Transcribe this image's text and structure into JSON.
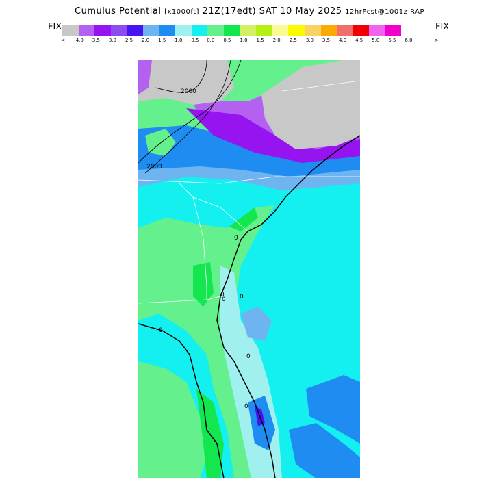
{
  "title": {
    "main": "Cumulus Potential",
    "units": "[x1000ft]",
    "time": "21Z(17edt) SAT 10 May 2025",
    "forecast": "12hrFcst@1001z RAP"
  },
  "legend": {
    "left_label": "FIX",
    "right_label": "FIX",
    "left_arrow": "<",
    "right_arrow": ">",
    "ticks": [
      "-4.0",
      "-3.5",
      "-3.0",
      "-2.5",
      "-2.0",
      "-1.5",
      "-1.0",
      "-0.5",
      "0.0",
      "0.5",
      "1.0",
      "1.5",
      "2.0",
      "2.5",
      "3.0",
      "3.5",
      "4.0",
      "4.5",
      "5.0",
      "5.5",
      "6.0"
    ],
    "colors": [
      "#c8c8c8",
      "#b460f0",
      "#9614f0",
      "#8c4cf0",
      "#4614f0",
      "#6eb4f0",
      "#1e8cf0",
      "#a0f0f0",
      "#14f0f0",
      "#64f08c",
      "#14e650",
      "#d2f064",
      "#b4f014",
      "#fafa96",
      "#fafa00",
      "#fad264",
      "#faaa00",
      "#f06e6e",
      "#f00000",
      "#f064f0",
      "#f000c8"
    ]
  },
  "map": {
    "contour_labels": [
      "2000",
      "2000",
      "0",
      "0",
      "0",
      "0",
      "0",
      "0",
      "0"
    ],
    "field_colors": {
      "gray": "#c8c8c8",
      "purple": "#b460f0",
      "violet": "#9614f0",
      "blue": "#4614f0",
      "lightblue": "#6eb4f0",
      "medblue": "#1e8cf0",
      "paleaqua": "#a0f0f0",
      "cyan": "#14f0f0",
      "green": "#64f08c",
      "brightgreen": "#14e650",
      "yellowgreen": "#d2f064"
    }
  }
}
